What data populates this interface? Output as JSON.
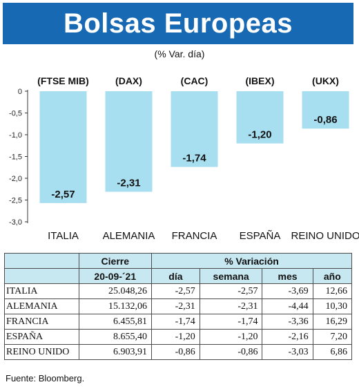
{
  "header": {
    "title": "Bolsas Europeas",
    "subtitle": "(% Var. día)"
  },
  "chart_data": {
    "type": "bar",
    "indices": [
      "(FTSE MIB)",
      "(DAX)",
      "(CAC)",
      "(IBEX)",
      "(UKX)"
    ],
    "categories": [
      "ITALIA",
      "ALEMANIA",
      "FRANCIA",
      "ESPAÑA",
      "REINO UNIDO"
    ],
    "values": [
      -2.57,
      -2.31,
      -1.74,
      -1.2,
      -0.86
    ],
    "value_labels": [
      "-2,57",
      "-2,31",
      "-1,74",
      "-1,20",
      "-0,86"
    ],
    "yticks": [
      "0",
      "-0,5",
      "-1,0",
      "-1,5",
      "-2,0",
      "-2,5",
      "-3,0"
    ],
    "ylim": [
      -3.0,
      0
    ],
    "bar_color": "#a8dff0",
    "grid": false
  },
  "table": {
    "group_headers": [
      "Cierre",
      "% Variación"
    ],
    "date": "20-09-´21",
    "columns": [
      "día",
      "semana",
      "mes",
      "año"
    ],
    "rows": [
      {
        "name": "ITALIA",
        "cierre": "25.048,26",
        "dia": "-2,57",
        "semana": "-2,57",
        "mes": "-3,69",
        "ano": "12,66"
      },
      {
        "name": "ALEMANIA",
        "cierre": "15.132,06",
        "dia": "-2,31",
        "semana": "-2,31",
        "mes": "-4,44",
        "ano": "10,30"
      },
      {
        "name": "FRANCIA",
        "cierre": "6.455,81",
        "dia": "-1,74",
        "semana": "-1,74",
        "mes": "-3,36",
        "ano": "16,29"
      },
      {
        "name": "ESPAÑA",
        "cierre": "8.655,40",
        "dia": "-1,20",
        "semana": "-1,20",
        "mes": "-2,16",
        "ano": "7,20"
      },
      {
        "name": "REINO UNIDO",
        "cierre": "6.903,91",
        "dia": "-0,86",
        "semana": "-0,86",
        "mes": "-3,03",
        "ano": "6,86"
      }
    ]
  },
  "source": "Fuente: Bloomberg.",
  "colors": {
    "banner": "#1769b4",
    "bar": "#a8dff0",
    "table_header": "#c7e7f1"
  }
}
